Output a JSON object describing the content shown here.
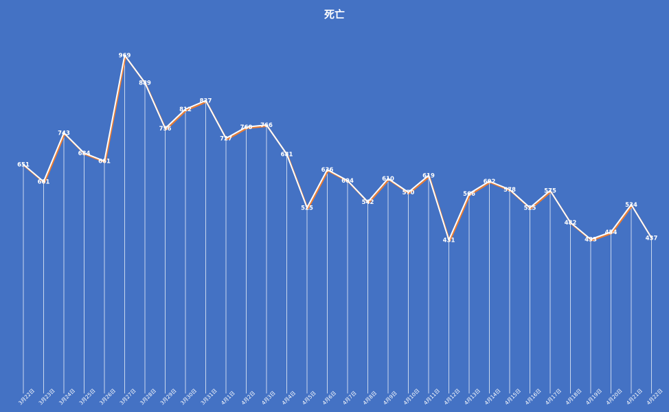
{
  "chart_data": {
    "type": "line",
    "title": "死亡",
    "xlabel": "",
    "ylabel": "",
    "ylim": [
      0,
      1050
    ],
    "grid": false,
    "legend": "none",
    "categories": [
      "3月22日",
      "3月23日",
      "3月24日",
      "3月25日",
      "3月26日",
      "3月27日",
      "3月28日",
      "3月29日",
      "3月30日",
      "3月31日",
      "4月1日",
      "4月2日",
      "4月3日",
      "4月4日",
      "4月5日",
      "4月6日",
      "4月7日",
      "4月8日",
      "4月9日",
      "4月10日",
      "4月11日",
      "4月12日",
      "4月13日",
      "4月14日",
      "4月15日",
      "4月16日",
      "4月17日",
      "4月18日",
      "4月19日",
      "4月20日",
      "4月21日",
      "4月22日"
    ],
    "series": [
      {
        "values": [
          651,
          601,
          743,
          684,
          661,
          969,
          889,
          756,
          812,
          837,
          727,
          760,
          766,
          681,
          525,
          636,
          604,
          542,
          610,
          570,
          619,
          431,
          566,
          602,
          578,
          525,
          575,
          482,
          433,
          454,
          534,
          437
        ]
      }
    ],
    "colors": {
      "background": "#4472C4",
      "line": "#ffffff",
      "line_shadow": "#ED7D31",
      "drop_lines": "#ffffff",
      "text": "#ffffff"
    }
  }
}
